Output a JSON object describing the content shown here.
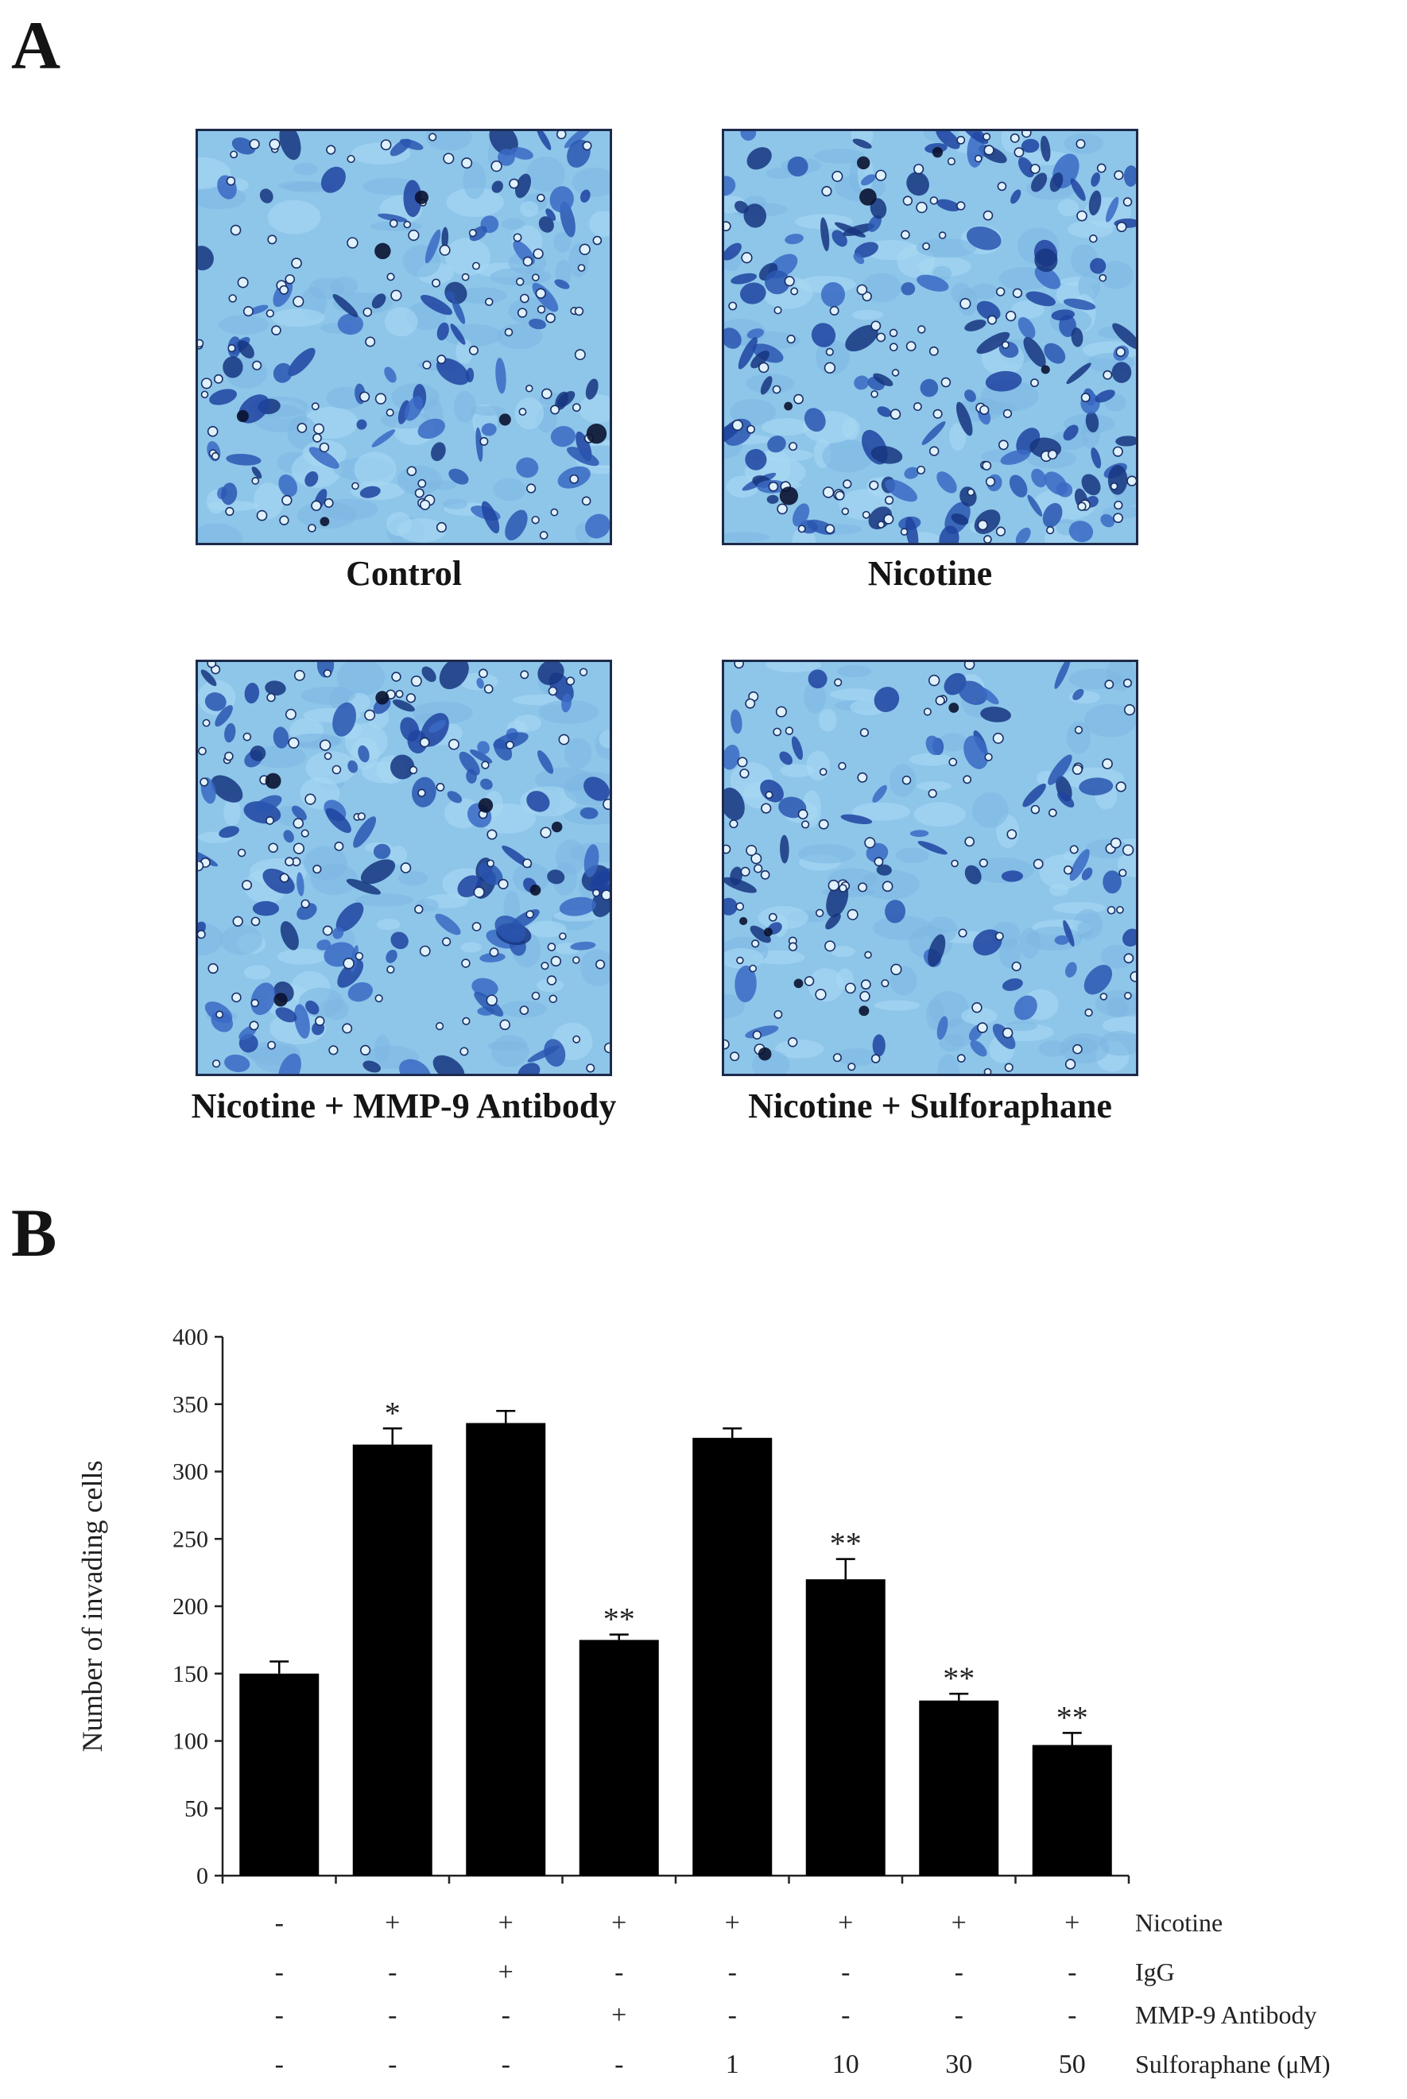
{
  "panel_a": {
    "letter": "A",
    "images": [
      {
        "label": "Control",
        "density": 0.55
      },
      {
        "label": "Nicotine",
        "density": 0.85
      },
      {
        "label": "Nicotine + MMP-9 Antibody",
        "density": 0.7
      },
      {
        "label": "Nicotine + Sulforaphane",
        "density": 0.38
      }
    ]
  },
  "panel_b": {
    "letter": "B"
  },
  "chart_data": {
    "type": "bar",
    "ylabel": "Number of invading cells",
    "xlabel": "",
    "ylim": [
      0,
      400
    ],
    "yticks": [
      0,
      50,
      100,
      150,
      200,
      250,
      300,
      350,
      400
    ],
    "grid": false,
    "values": [
      150,
      320,
      336,
      175,
      325,
      220,
      130,
      97
    ],
    "errors": [
      9,
      12,
      9,
      4,
      7,
      15,
      5,
      9
    ],
    "significance": [
      "",
      "*",
      "",
      "**",
      "",
      "**",
      "**",
      "**"
    ],
    "bar_color": "#000000",
    "condition_rows": [
      {
        "label": "Nicotine",
        "values": [
          "-",
          "+",
          "+",
          "+",
          "+",
          "+",
          "+",
          "+"
        ]
      },
      {
        "label": "IgG",
        "values": [
          "-",
          "-",
          "+",
          "-",
          "-",
          "-",
          "-",
          "-"
        ]
      },
      {
        "label": "MMP-9 Antibody",
        "values": [
          "-",
          "-",
          "-",
          "+",
          "-",
          "-",
          "-",
          "-"
        ]
      },
      {
        "label": "Sulforaphane (μM)",
        "values": [
          "-",
          "-",
          "-",
          "-",
          "1",
          "10",
          "30",
          "50"
        ]
      }
    ]
  }
}
